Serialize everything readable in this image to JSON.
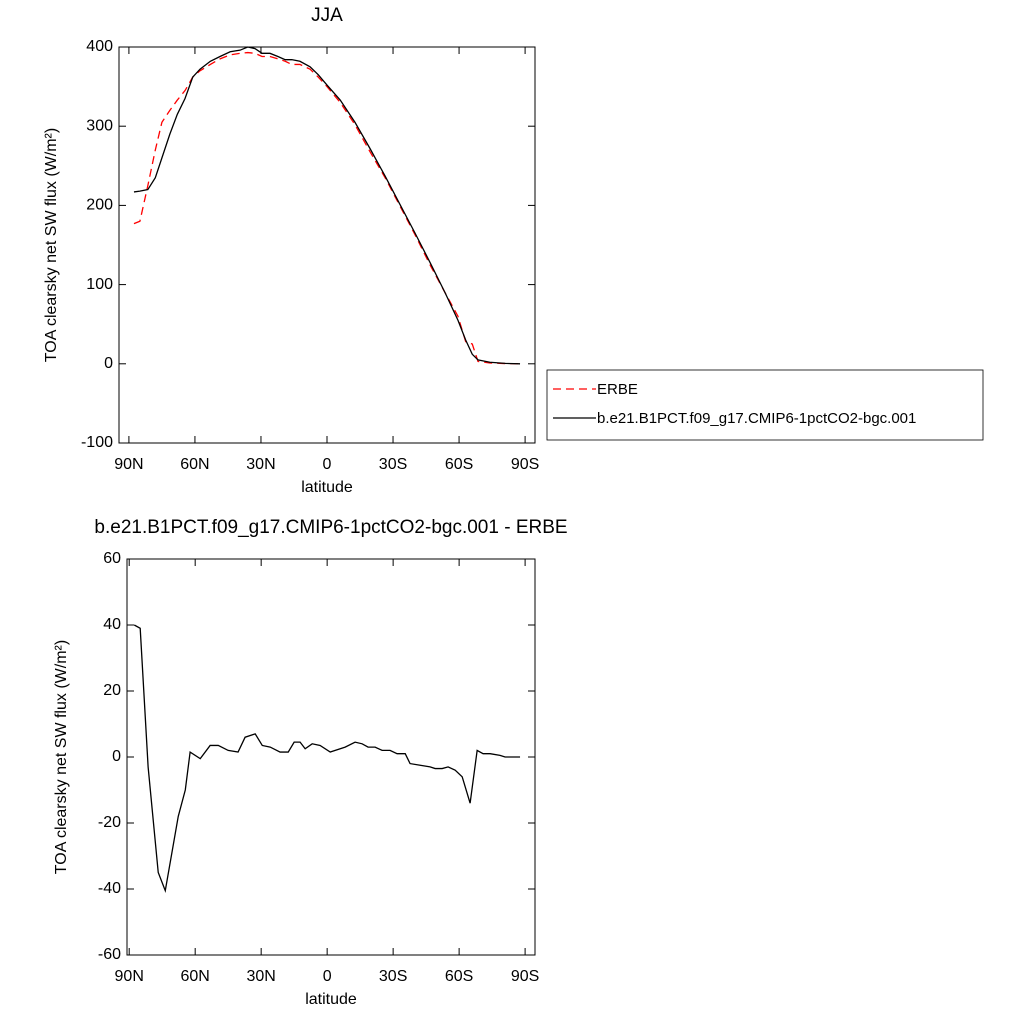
{
  "chart_data": [
    {
      "type": "line",
      "title": "JJA",
      "xlabel": "latitude",
      "ylabel": "TOA clearsky net SW flux (W/m²)",
      "x": [
        87.7,
        85,
        81.4,
        78,
        75,
        71.4,
        68,
        64.5,
        61,
        57.7,
        53,
        48.6,
        44,
        39.5,
        36,
        32.7,
        29.5,
        25.9,
        22.3,
        19,
        16,
        12.3,
        7.7,
        4,
        0,
        -6,
        -12.7,
        -19.5,
        -26.4,
        -33,
        -40,
        -46.8,
        -53.6,
        -59.5,
        -63,
        -66,
        -68.6,
        -74,
        -81,
        -87.7
      ],
      "series": [
        {
          "name": "ERBE",
          "color": "#ff0000",
          "dashed": true,
          "values": [
            177,
            180,
            225,
            270,
            305,
            320,
            333,
            345,
            362,
            370,
            378,
            385,
            390,
            392,
            393,
            392,
            388,
            388,
            385,
            382,
            378,
            378,
            372,
            362,
            350,
            330,
            302,
            268,
            235,
            200,
            163,
            125,
            90,
            60,
            28,
            25,
            3,
            1,
            0.3,
            0
          ]
        },
        {
          "name": "b.e21.B1PCT.f09_g17.CMIP6-1pctCO2-bgc.001",
          "color": "#000000",
          "dashed": false,
          "values": [
            217,
            218,
            220,
            235,
            260,
            290,
            315,
            335,
            362,
            372,
            382,
            388,
            394,
            396,
            400,
            398,
            392,
            392,
            388,
            384,
            384,
            382,
            375,
            365,
            352,
            333,
            305,
            272,
            237,
            202,
            165,
            128,
            90,
            55,
            30,
            12,
            5,
            2,
            0.5,
            0
          ]
        }
      ],
      "xlim": [
        94.5,
        -94.5
      ],
      "ylim": [
        -100,
        400
      ],
      "xticks": [
        {
          "value": 90,
          "label": "90N"
        },
        {
          "value": 60,
          "label": "60N"
        },
        {
          "value": 30,
          "label": "30N"
        },
        0,
        {
          "value": -30,
          "label": "30S"
        },
        {
          "value": -60,
          "label": "60S"
        },
        {
          "value": -90,
          "label": "90S"
        }
      ],
      "yticks": [
        -100,
        0,
        100,
        200,
        300,
        400
      ],
      "legend": "right"
    },
    {
      "type": "line",
      "title": "b.e21.B1PCT.f09_g17.CMIP6-1pctCO2-bgc.001 - ERBE",
      "xlabel": "latitude",
      "ylabel": "TOA clearsky net SW flux (W/m²)",
      "x": [
        87.7,
        85,
        81.4,
        76.8,
        73.6,
        67.7,
        64.5,
        62.3,
        57.7,
        53.2,
        49.5,
        45,
        40.5,
        37.3,
        32.7,
        29.5,
        25.9,
        21.4,
        17.7,
        15,
        12.3,
        10,
        6.8,
        3.2,
        -1.4,
        -8.2,
        -12.7,
        -15.9,
        -18.6,
        -21.8,
        -25,
        -28.6,
        -31.8,
        -35.5,
        -37.7,
        -42.3,
        -46.8,
        -49.1,
        -52.3,
        -55,
        -58.2,
        -61.4,
        -65,
        -68.2,
        -70.9,
        -74.1,
        -78.6,
        -80.9,
        -87.7
      ],
      "values": [
        40,
        39,
        -3,
        -35,
        -40.5,
        -18,
        -10,
        1.5,
        -0.5,
        3.5,
        3.5,
        2,
        1.5,
        6,
        7,
        3.5,
        3,
        1.5,
        1.5,
        4.5,
        4.5,
        2.5,
        4,
        3.5,
        1.5,
        3,
        4.5,
        4,
        3,
        3,
        2,
        2,
        1,
        1,
        -2,
        -2.5,
        -3,
        -3.5,
        -3.5,
        -3,
        -4,
        -6,
        -14,
        2,
        1,
        1,
        0.5,
        0,
        0
      ],
      "color": "#000000",
      "xlim": [
        91,
        -94.5
      ],
      "ylim": [
        -60,
        60
      ],
      "xticks": [
        {
          "value": 90,
          "label": "90N"
        },
        {
          "value": 60,
          "label": "60N"
        },
        {
          "value": 30,
          "label": "30N"
        },
        0,
        {
          "value": -30,
          "label": "30S"
        },
        {
          "value": -60,
          "label": "60S"
        },
        {
          "value": -90,
          "label": "90S"
        }
      ],
      "yticks": [
        -60,
        -40,
        -20,
        0,
        20,
        40,
        60
      ]
    }
  ]
}
